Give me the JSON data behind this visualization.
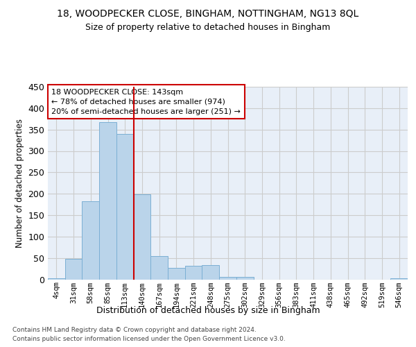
{
  "title1": "18, WOODPECKER CLOSE, BINGHAM, NOTTINGHAM, NG13 8QL",
  "title2": "Size of property relative to detached houses in Bingham",
  "xlabel": "Distribution of detached houses by size in Bingham",
  "ylabel": "Number of detached properties",
  "bar_labels": [
    "4sqm",
    "31sqm",
    "58sqm",
    "85sqm",
    "113sqm",
    "140sqm",
    "167sqm",
    "194sqm",
    "221sqm",
    "248sqm",
    "275sqm",
    "302sqm",
    "329sqm",
    "356sqm",
    "383sqm",
    "411sqm",
    "438sqm",
    "465sqm",
    "492sqm",
    "519sqm",
    "546sqm"
  ],
  "bar_values": [
    3,
    48,
    182,
    367,
    340,
    198,
    54,
    26,
    32,
    33,
    6,
    6,
    0,
    0,
    0,
    0,
    0,
    0,
    0,
    0,
    3
  ],
  "bar_color": "#bad4ea",
  "bar_edge_color": "#7bafd4",
  "vline_x": 4.5,
  "vline_color": "#cc0000",
  "annotation_text": "18 WOODPECKER CLOSE: 143sqm\n← 78% of detached houses are smaller (974)\n20% of semi-detached houses are larger (251) →",
  "annotation_box_color": "#ffffff",
  "annotation_box_edge": "#cc0000",
  "ylim": [
    0,
    450
  ],
  "yticks": [
    0,
    50,
    100,
    150,
    200,
    250,
    300,
    350,
    400,
    450
  ],
  "bg_color": "#ffffff",
  "grid_color": "#cccccc",
  "ax_bg_color": "#e8eff8",
  "footer1": "Contains HM Land Registry data © Crown copyright and database right 2024.",
  "footer2": "Contains public sector information licensed under the Open Government Licence v3.0."
}
